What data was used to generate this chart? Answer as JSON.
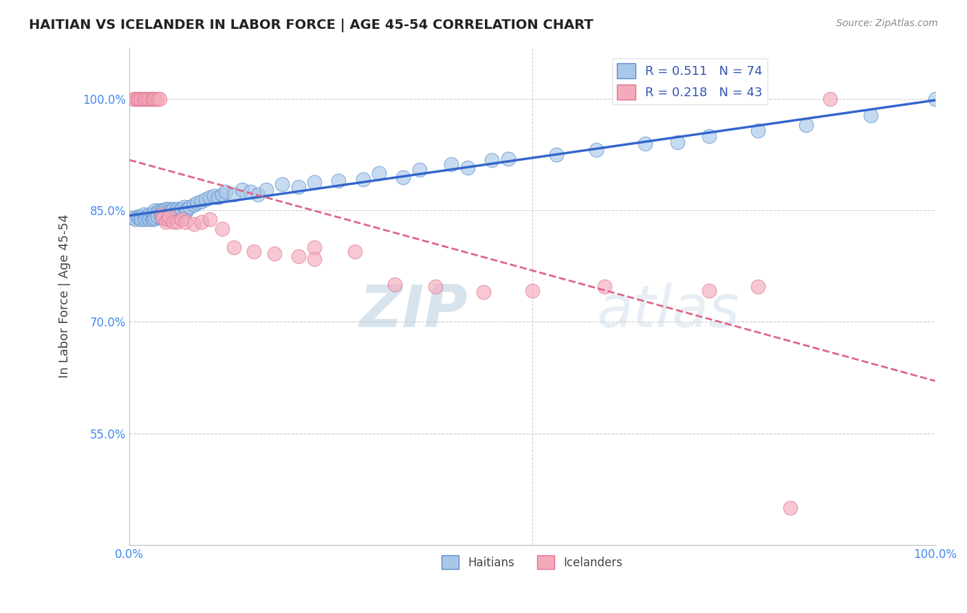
{
  "title": "HAITIAN VS ICELANDER IN LABOR FORCE | AGE 45-54 CORRELATION CHART",
  "source_text": "Source: ZipAtlas.com",
  "ylabel": "In Labor Force | Age 45-54",
  "xlim": [
    0.0,
    1.0
  ],
  "ylim": [
    0.4,
    1.07
  ],
  "y_ticks": [
    0.55,
    0.7,
    0.85,
    1.0
  ],
  "y_tick_labels": [
    "55.0%",
    "70.0%",
    "85.0%",
    "100.0%"
  ],
  "x_tick_labels": [
    "0.0%",
    "",
    "",
    "",
    "100.0%"
  ],
  "haitians_color": "#A8C8E8",
  "icelanders_color": "#F4AABB",
  "haitians_edge_color": "#5588CC",
  "icelanders_edge_color": "#E07090",
  "haitians_line_color": "#3366CC",
  "icelanders_line_color": "#DD6688",
  "R_haitians": 0.511,
  "N_haitians": 74,
  "R_icelanders": 0.218,
  "N_icelanders": 43,
  "legend_color": "#3355BB",
  "grid_color": "#CCCCCC",
  "tick_color": "#4488EE",
  "background_color": "#FFFFFF",
  "watermark_color": "#D0E4F4",
  "haitians_x": [
    0.005,
    0.008,
    0.01,
    0.012,
    0.015,
    0.015,
    0.018,
    0.02,
    0.02,
    0.022,
    0.025,
    0.025,
    0.028,
    0.03,
    0.03,
    0.032,
    0.032,
    0.035,
    0.035,
    0.038,
    0.04,
    0.04,
    0.042,
    0.045,
    0.045,
    0.048,
    0.05,
    0.05,
    0.052,
    0.055,
    0.055,
    0.058,
    0.06,
    0.062,
    0.065,
    0.068,
    0.07,
    0.072,
    0.075,
    0.08,
    0.085,
    0.09,
    0.095,
    0.1,
    0.105,
    0.11,
    0.115,
    0.12,
    0.13,
    0.14,
    0.15,
    0.16,
    0.17,
    0.19,
    0.21,
    0.23,
    0.26,
    0.29,
    0.31,
    0.34,
    0.36,
    0.4,
    0.42,
    0.45,
    0.47,
    0.53,
    0.58,
    0.64,
    0.68,
    0.72,
    0.78,
    0.84,
    0.92,
    1.0
  ],
  "haitians_y": [
    0.84,
    0.838,
    0.842,
    0.84,
    0.842,
    0.838,
    0.845,
    0.84,
    0.838,
    0.842,
    0.845,
    0.838,
    0.84,
    0.845,
    0.838,
    0.85,
    0.84,
    0.848,
    0.842,
    0.85,
    0.848,
    0.84,
    0.85,
    0.852,
    0.842,
    0.848,
    0.852,
    0.84,
    0.85,
    0.852,
    0.845,
    0.85,
    0.852,
    0.848,
    0.852,
    0.855,
    0.848,
    0.852,
    0.855,
    0.858,
    0.86,
    0.862,
    0.865,
    0.868,
    0.87,
    0.868,
    0.872,
    0.875,
    0.872,
    0.878,
    0.875,
    0.872,
    0.878,
    0.885,
    0.882,
    0.888,
    0.89,
    0.892,
    0.9,
    0.895,
    0.905,
    0.912,
    0.908,
    0.918,
    0.92,
    0.925,
    0.932,
    0.94,
    0.942,
    0.95,
    0.958,
    0.965,
    0.978,
    1.0
  ],
  "icelanders_x": [
    0.005,
    0.008,
    0.01,
    0.012,
    0.015,
    0.018,
    0.02,
    0.022,
    0.025,
    0.028,
    0.03,
    0.032,
    0.035,
    0.038,
    0.04,
    0.042,
    0.045,
    0.048,
    0.05,
    0.055,
    0.06,
    0.065,
    0.07,
    0.08,
    0.09,
    0.1,
    0.115,
    0.13,
    0.155,
    0.18,
    0.21,
    0.23,
    0.28,
    0.23,
    0.33,
    0.38,
    0.44,
    0.5,
    0.59,
    0.72,
    0.78,
    0.82,
    0.87
  ],
  "icelanders_y": [
    1.0,
    1.0,
    1.0,
    1.0,
    1.0,
    1.0,
    1.0,
    1.0,
    1.0,
    1.0,
    1.0,
    1.0,
    1.0,
    1.0,
    0.845,
    0.84,
    0.835,
    0.838,
    0.842,
    0.835,
    0.835,
    0.838,
    0.835,
    0.832,
    0.835,
    0.838,
    0.825,
    0.8,
    0.795,
    0.792,
    0.788,
    0.8,
    0.795,
    0.785,
    0.75,
    0.748,
    0.74,
    0.742,
    0.748,
    0.742,
    0.748,
    0.45,
    1.0
  ]
}
